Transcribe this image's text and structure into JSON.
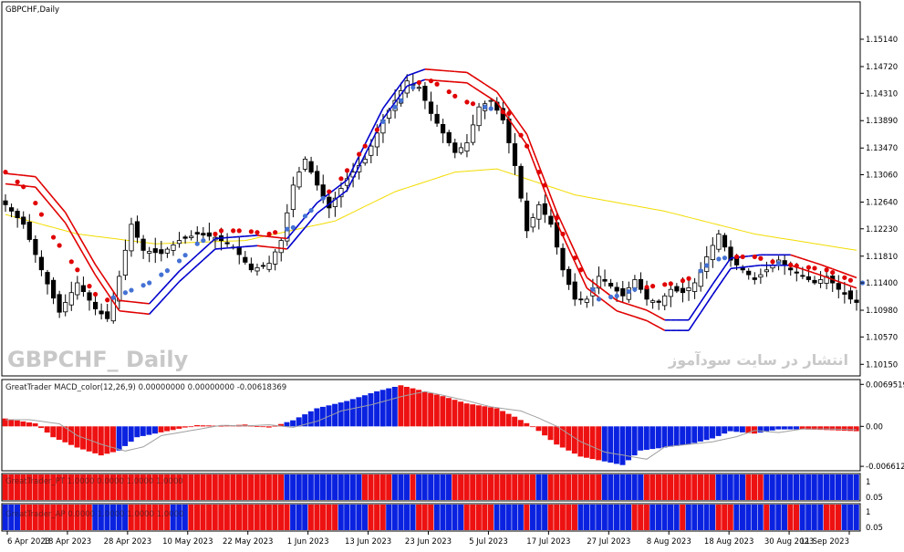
{
  "chart_data": {
    "type": "candlestick",
    "symbol_title": "GBPCHF,Daily",
    "watermark": "GBPCHF_ Daily",
    "site_text": "انتشار در سایت سودآموز",
    "price_axis": {
      "ylim": [
        1.1,
        1.157
      ],
      "ticks": [
        "1.15140",
        "1.14720",
        "1.14310",
        "1.13890",
        "1.13470",
        "1.13060",
        "1.12640",
        "1.12230",
        "1.11810",
        "1.11400",
        "1.10980",
        "1.10570",
        "1.10150"
      ]
    },
    "date_ticks": [
      "6 Apr 2023",
      "18 Apr 2023",
      "28 Apr 2023",
      "10 May 2023",
      "22 May 2023",
      "1 Jun 2023",
      "13 Jun 2023",
      "23 Jun 2023",
      "5 Jul 2023",
      "17 Jul 2023",
      "27 Jul 2023",
      "8 Aug 2023",
      "18 Aug 2023",
      "30 Aug 2023",
      "11 Sep 2023"
    ],
    "close_path": [
      [
        0,
        1.126
      ],
      [
        3,
        1.123
      ],
      [
        6,
        1.116
      ],
      [
        9,
        1.1095
      ],
      [
        12,
        1.114
      ],
      [
        15,
        1.11
      ],
      [
        17,
        1.1085
      ],
      [
        19,
        1.115
      ],
      [
        21,
        1.123
      ],
      [
        23,
        1.119
      ],
      [
        26,
        1.1185
      ],
      [
        29,
        1.1205
      ],
      [
        32,
        1.1215
      ],
      [
        35,
        1.121
      ],
      [
        38,
        1.1195
      ],
      [
        41,
        1.116
      ],
      [
        44,
        1.117
      ],
      [
        46,
        1.1205
      ],
      [
        48,
        1.129
      ],
      [
        50,
        1.133
      ],
      [
        52,
        1.129
      ],
      [
        54,
        1.1255
      ],
      [
        57,
        1.13
      ],
      [
        60,
        1.133
      ],
      [
        63,
        1.139
      ],
      [
        65,
        1.142
      ],
      [
        67,
        1.145
      ],
      [
        69,
        1.144
      ],
      [
        71,
        1.14
      ],
      [
        73,
        1.137
      ],
      [
        75,
        1.134
      ],
      [
        77,
        1.1355
      ],
      [
        79,
        1.141
      ],
      [
        81,
        1.142
      ],
      [
        83,
        1.139
      ],
      [
        85,
        1.132
      ],
      [
        87,
        1.122
      ],
      [
        89,
        1.126
      ],
      [
        91,
        1.123
      ],
      [
        93,
        1.116
      ],
      [
        95,
        1.1115
      ],
      [
        97,
        1.1115
      ],
      [
        99,
        1.115
      ],
      [
        101,
        1.1135
      ],
      [
        103,
        1.112
      ],
      [
        105,
        1.1145
      ],
      [
        107,
        1.1115
      ],
      [
        109,
        1.111
      ],
      [
        111,
        1.113
      ],
      [
        113,
        1.1125
      ],
      [
        115,
        1.114
      ],
      [
        117,
        1.118
      ],
      [
        119,
        1.1215
      ],
      [
        121,
        1.1175
      ],
      [
        123,
        1.116
      ],
      [
        125,
        1.1145
      ],
      [
        127,
        1.116
      ],
      [
        129,
        1.1175
      ],
      [
        131,
        1.116
      ],
      [
        133,
        1.115
      ],
      [
        135,
        1.114
      ],
      [
        137,
        1.115
      ],
      [
        139,
        1.113
      ],
      [
        141,
        1.1115
      ],
      [
        142,
        1.111
      ]
    ],
    "series": [
      {
        "name": "MA",
        "values": [
          [
            0,
            1.1245
          ],
          [
            12,
            1.1215
          ],
          [
            25,
            1.12
          ],
          [
            40,
            1.1205
          ],
          [
            55,
            1.1235
          ],
          [
            65,
            1.128
          ],
          [
            75,
            1.131
          ],
          [
            82,
            1.1315
          ],
          [
            95,
            1.1275
          ],
          [
            110,
            1.125
          ],
          [
            125,
            1.1215
          ],
          [
            142,
            1.119
          ]
        ]
      },
      {
        "name": "Channel",
        "values": [
          [
            0,
            1.13
          ],
          [
            5,
            1.1295
          ],
          [
            10,
            1.124
          ],
          [
            15,
            1.116
          ],
          [
            19,
            1.1105
          ],
          [
            24,
            1.11
          ],
          [
            29,
            1.115
          ],
          [
            35,
            1.12
          ],
          [
            42,
            1.1205
          ],
          [
            47,
            1.12
          ],
          [
            52,
            1.1255
          ],
          [
            57,
            1.129
          ],
          [
            63,
            1.14
          ],
          [
            67,
            1.145
          ],
          [
            70,
            1.146
          ],
          [
            77,
            1.1455
          ],
          [
            82,
            1.1425
          ],
          [
            87,
            1.136
          ],
          [
            92,
            1.124
          ],
          [
            97,
            1.114
          ],
          [
            102,
            1.1105
          ],
          [
            107,
            1.109
          ],
          [
            110,
            1.1075
          ],
          [
            114,
            1.1075
          ],
          [
            118,
            1.113
          ],
          [
            121,
            1.117
          ],
          [
            126,
            1.1175
          ],
          [
            131,
            1.1175
          ],
          [
            136,
            1.116
          ],
          [
            142,
            1.114
          ]
        ]
      },
      {
        "name": "Dots",
        "values": [
          [
            0,
            1.131
          ],
          [
            4,
            1.128
          ],
          [
            8,
            1.121
          ],
          [
            12,
            1.116
          ],
          [
            16,
            1.111
          ],
          [
            20,
            1.1125
          ],
          [
            24,
            1.114
          ],
          [
            28,
            1.1165
          ],
          [
            32,
            1.12
          ],
          [
            36,
            1.122
          ],
          [
            40,
            1.122
          ],
          [
            44,
            1.1215
          ],
          [
            48,
            1.1225
          ],
          [
            52,
            1.126
          ],
          [
            56,
            1.13
          ],
          [
            60,
            1.135
          ],
          [
            64,
            1.14
          ],
          [
            68,
            1.144
          ],
          [
            70,
            1.1455
          ],
          [
            73,
            1.144
          ],
          [
            76,
            1.142
          ],
          [
            80,
            1.141
          ],
          [
            84,
            1.14
          ],
          [
            87,
            1.135
          ],
          [
            90,
            1.129
          ],
          [
            93,
            1.1215
          ],
          [
            96,
            1.116
          ],
          [
            99,
            1.1115
          ],
          [
            102,
            1.112
          ],
          [
            105,
            1.113
          ],
          [
            108,
            1.1135
          ],
          [
            112,
            1.114
          ],
          [
            115,
            1.115
          ],
          [
            118,
            1.1175
          ],
          [
            121,
            1.118
          ],
          [
            125,
            1.118
          ],
          [
            129,
            1.117
          ],
          [
            133,
            1.1165
          ],
          [
            137,
            1.116
          ],
          [
            142,
            1.114
          ]
        ]
      }
    ],
    "macd": {
      "label": "GreatTrader MACD_color(12,26,9) 0.00000000 0.00000000 -0.00618369",
      "ticks": [
        "0.0069519",
        "0.00",
        "-0.006612"
      ],
      "ylim": [
        -0.0072,
        0.0076
      ],
      "path": [
        [
          0,
          0.0013
        ],
        [
          5,
          0.0005
        ],
        [
          8,
          -0.0018
        ],
        [
          12,
          -0.0035
        ],
        [
          16,
          -0.0048
        ],
        [
          19,
          -0.004
        ],
        [
          22,
          -0.0018
        ],
        [
          27,
          -0.0008
        ],
        [
          32,
          0.0002
        ],
        [
          36,
          0.0001
        ],
        [
          40,
          0.0003
        ],
        [
          44,
          -0.0002
        ],
        [
          48,
          0.001
        ],
        [
          52,
          0.003
        ],
        [
          57,
          0.0042
        ],
        [
          62,
          0.0058
        ],
        [
          66,
          0.0068
        ],
        [
          68,
          0.0063
        ],
        [
          73,
          0.005
        ],
        [
          77,
          0.0038
        ],
        [
          82,
          0.003
        ],
        [
          85,
          0.0016
        ],
        [
          88,
          0.0
        ],
        [
          92,
          -0.003
        ],
        [
          96,
          -0.005
        ],
        [
          100,
          -0.0058
        ],
        [
          103,
          -0.0064
        ],
        [
          106,
          -0.004
        ],
        [
          110,
          -0.0035
        ],
        [
          114,
          -0.003
        ],
        [
          118,
          -0.002
        ],
        [
          121,
          -0.0008
        ],
        [
          125,
          -0.0012
        ],
        [
          129,
          -0.0005
        ],
        [
          133,
          -0.0005
        ],
        [
          137,
          -0.0006
        ],
        [
          142,
          -0.0008
        ]
      ],
      "blue_runs": [
        [
          19,
          25
        ],
        [
          47,
          65
        ],
        [
          100,
          123
        ],
        [
          126,
          132
        ]
      ]
    },
    "strip1": {
      "label": "GreatTrader_PT 1.0000 0.0000 1.0000 1.0000",
      "ticks": [
        "1",
        "0.05"
      ],
      "blue_runs": [
        [
          47,
          59
        ],
        [
          65,
          67
        ],
        [
          69,
          74
        ],
        [
          89,
          90
        ],
        [
          100,
          106
        ],
        [
          119,
          123
        ],
        [
          127,
          142
        ]
      ]
    },
    "strip2": {
      "label": "GreatTrader_AP 0.0000 1.0000 1.0000 1.0000",
      "ticks": [
        "1",
        "0.05"
      ],
      "blue_runs": [
        [
          0,
          2
        ],
        [
          15,
          20
        ],
        [
          28,
          30
        ],
        [
          48,
          50
        ],
        [
          56,
          60
        ],
        [
          64,
          68
        ],
        [
          72,
          76
        ],
        [
          82,
          86
        ],
        [
          88,
          90
        ],
        [
          96,
          104
        ],
        [
          108,
          112
        ],
        [
          114,
          118
        ],
        [
          122,
          126
        ],
        [
          128,
          130
        ],
        [
          133,
          136
        ],
        [
          140,
          142
        ]
      ]
    },
    "colors": {
      "up": "#0a22e0",
      "down": "#ee1111",
      "ma": "#f2dc00",
      "channel_blue": "#0000cc",
      "channel_red": "#e00000",
      "dot_red": "#e00000",
      "dot_blue": "#4472d4",
      "signal": "#a0a0a0",
      "grid_text": "#000000"
    }
  }
}
